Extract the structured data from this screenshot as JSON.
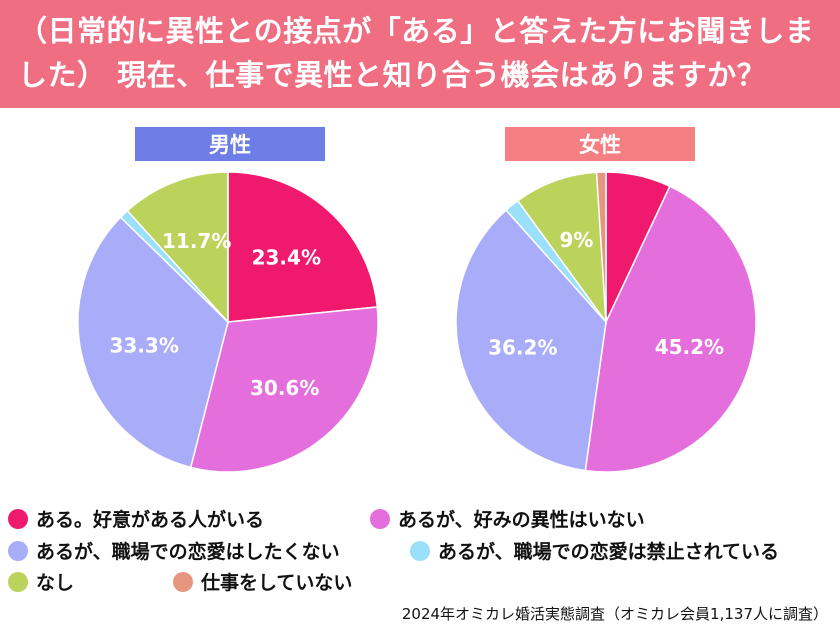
{
  "header": {
    "title": "（日常的に異性との接点が「ある」と答えた方にお聞きしました） 現在、仕事で異性と知り合う機会はありますか？"
  },
  "colors": {
    "header_bg": "#ef6e82",
    "male_label_bg": "#6f7ee6",
    "female_label_bg": "#f47f82"
  },
  "categories": [
    {
      "label": "ある。好意がある人がいる",
      "color": "#ef1a6e"
    },
    {
      "label": "あるが、好みの異性はいない",
      "color": "#e46fdc"
    },
    {
      "label": "あるが、職場での恋愛はしたくない",
      "color": "#a9acf9"
    },
    {
      "label": "あるが、職場での恋愛は禁止されている",
      "color": "#9be0fa"
    },
    {
      "label": "なし",
      "color": "#bcd35b"
    },
    {
      "label": "仕事をしていない",
      "color": "#e6967e"
    }
  ],
  "chart_data": [
    {
      "type": "pie",
      "title": "男性",
      "labels": [
        "ある。好意がある人がいる",
        "あるが、好みの異性はいない",
        "あるが、職場での恋愛はしたくない",
        "あるが、職場での恋愛は禁止されている",
        "なし",
        "仕事をしていない"
      ],
      "values": [
        23.4,
        30.6,
        33.3,
        1.0,
        11.7,
        0.0
      ],
      "data_labels": [
        "23.4%",
        "30.6%",
        "33.3%",
        "",
        "11.7%",
        ""
      ]
    },
    {
      "type": "pie",
      "title": "女性",
      "labels": [
        "ある。好意がある人がいる",
        "あるが、好みの異性はいない",
        "あるが、職場での恋愛はしたくない",
        "あるが、職場での恋愛は禁止されている",
        "なし",
        "仕事をしていない"
      ],
      "values": [
        7.0,
        45.2,
        36.2,
        1.6,
        9.0,
        1.0
      ],
      "data_labels": [
        "",
        "45.2%",
        "36.2%",
        "",
        "9%",
        ""
      ]
    }
  ],
  "source": "2024年オミカレ婚活実態調査（オミカレ会員1,137人に調査）"
}
